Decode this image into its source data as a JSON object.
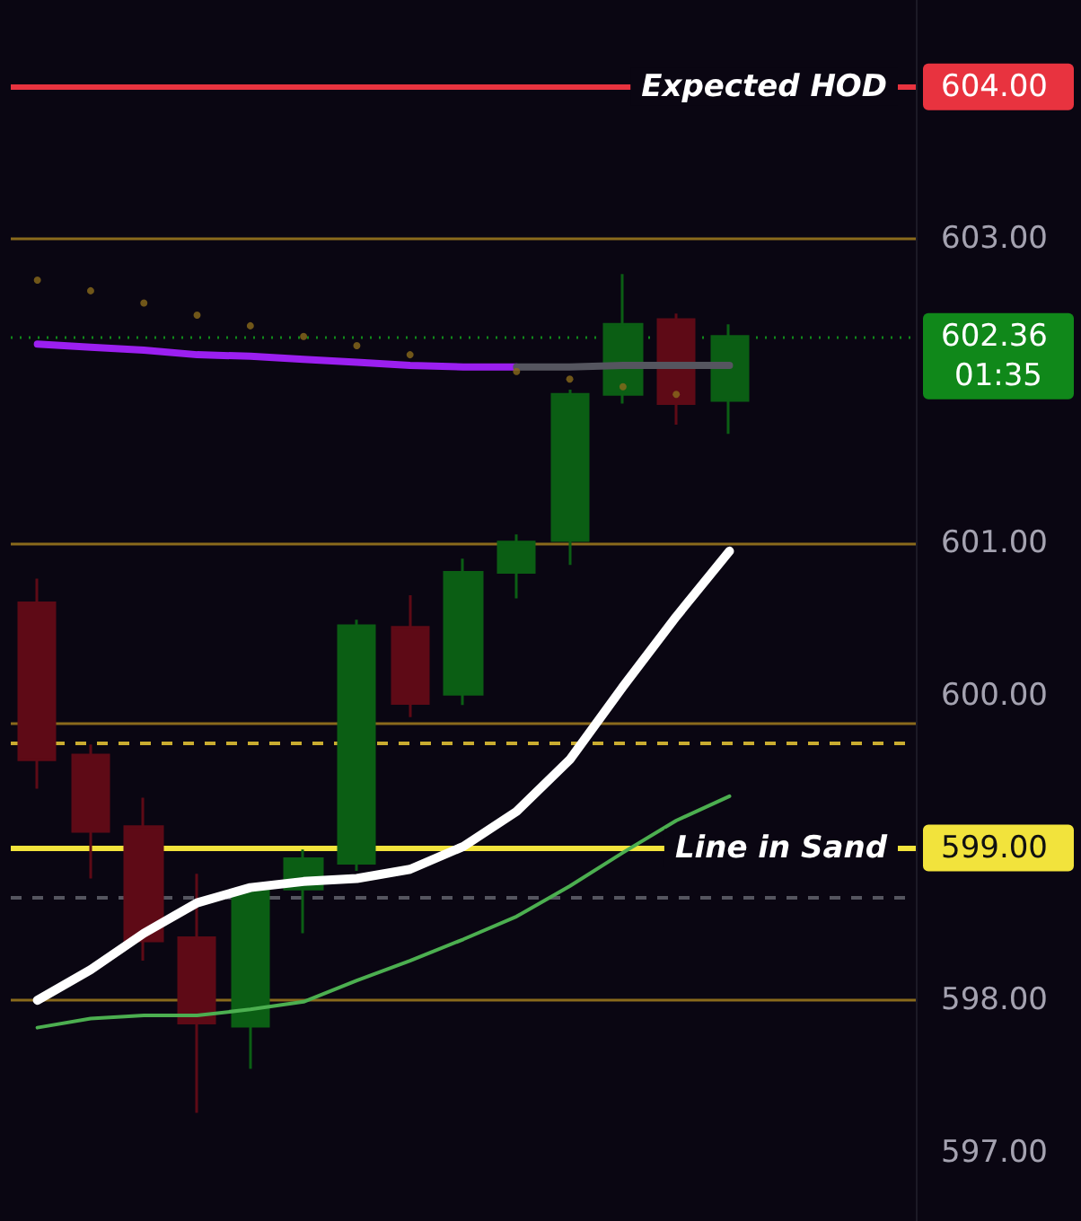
{
  "chart_data": {
    "type": "candlestick",
    "categories": [
      null,
      null,
      null,
      null,
      null,
      null,
      null,
      null,
      null,
      null,
      null,
      null,
      null,
      null
    ],
    "ylim": [
      596.55,
      604.57
    ],
    "yticks": [
      {
        "value": 597,
        "label": "597.00"
      },
      {
        "value": 598,
        "label": "598.00"
      },
      {
        "value": 599,
        "label": "599.00"
      },
      {
        "value": 600,
        "label": "600.00"
      },
      {
        "value": 601,
        "label": "601.00"
      },
      {
        "value": 602.36,
        "label": "602.36"
      },
      {
        "value": 603,
        "label": "603.00"
      },
      {
        "value": 604,
        "label": "604.00"
      }
    ],
    "tick_labels": "y",
    "annotations": [
      "01:35"
    ],
    "series": [
      {
        "type": "line",
        "color": "#9b1ff0",
        "values": [
          602.31,
          602.29,
          602.27,
          602.24,
          602.23,
          602.21,
          602.19,
          602.17,
          602.16,
          602.16,
          null,
          null,
          null,
          null
        ]
      },
      {
        "type": "line",
        "color": "#55555f",
        "values": [
          null,
          null,
          null,
          null,
          null,
          null,
          null,
          null,
          null,
          602.16,
          602.16,
          602.17,
          602.17,
          602.17
        ]
      },
      {
        "type": "scatter",
        "marker": "circle",
        "color": "#8a6a1c",
        "values": [
          602.73,
          602.66,
          602.58,
          602.5,
          602.43,
          602.36,
          602.3,
          602.24,
          null,
          602.13,
          602.08,
          602.03,
          601.98,
          null
        ]
      },
      {
        "type": "line",
        "color": "#4caf50",
        "values": [
          597.82,
          597.88,
          597.9,
          597.9,
          597.94,
          597.99,
          598.13,
          598.26,
          598.4,
          598.55,
          598.75,
          598.97,
          599.18,
          599.34
        ]
      },
      {
        "type": "line",
        "color": "#ffffff",
        "values": [
          598.0,
          598.2,
          598.44,
          598.64,
          598.74,
          598.78,
          598.8,
          598.86,
          599.01,
          599.24,
          599.58,
          600.06,
          600.52,
          600.95
        ]
      },
      {
        "type": "candlestick",
        "ohlc": [
          [
            600.61,
            600.77,
            599.39,
            599.58
          ],
          [
            599.61,
            599.68,
            598.8,
            599.11
          ],
          [
            599.14,
            599.33,
            598.26,
            598.39
          ],
          [
            598.41,
            598.83,
            597.26,
            597.85
          ],
          [
            597.83,
            598.75,
            597.55,
            598.72
          ],
          [
            598.73,
            598.99,
            598.44,
            598.93
          ],
          [
            598.9,
            600.5,
            598.85,
            600.46
          ],
          [
            600.45,
            600.66,
            599.86,
            599.95
          ],
          [
            600.01,
            600.9,
            599.94,
            600.81
          ],
          [
            600.81,
            601.06,
            600.64,
            601.01
          ],
          [
            601.02,
            602.01,
            600.86,
            601.98
          ],
          [
            601.98,
            602.77,
            601.92,
            602.44
          ],
          [
            602.47,
            602.51,
            601.78,
            601.92
          ],
          [
            601.94,
            602.44,
            601.72,
            602.36
          ]
        ],
        "colors": [
          "#5e0a16",
          "#5e0a16",
          "#5e0a16",
          "#5e0a16",
          "#0b5e14",
          "#0b5e14",
          "#0b5e14",
          "#5e0a16",
          "#0b5e14",
          "#0b5e14",
          "#0b5e14",
          "#0b5e14",
          "#5e0a16",
          "#0b5e14"
        ]
      }
    ],
    "ref_lines": [
      {
        "axis": "y",
        "value": 604,
        "label": "Expected HOD",
        "color": "#e8333f",
        "line_style": "solid"
      },
      {
        "axis": "y",
        "value": 603,
        "color": "#8a6a1c",
        "line_style": "solid"
      },
      {
        "axis": "y",
        "value": 602.36,
        "color": "#10881a",
        "line_style": "dotted"
      },
      {
        "axis": "y",
        "value": 601,
        "color": "#8a6a1c",
        "line_style": "solid"
      },
      {
        "axis": "y",
        "value": 599.82,
        "color": "#8a6a1c",
        "line_style": "solid"
      },
      {
        "axis": "y",
        "value": 599.69,
        "color": "#c9ac30",
        "line_style": "dashed"
      },
      {
        "axis": "y",
        "value": 599,
        "label": "Line in Sand",
        "color": "#f2e33c",
        "line_style": "solid"
      },
      {
        "axis": "y",
        "value": 598.67,
        "color": "#55555f",
        "line_style": "dashed"
      },
      {
        "axis": "y",
        "value": 598,
        "color": "#8a6a1c",
        "line_style": "solid"
      }
    ]
  }
}
